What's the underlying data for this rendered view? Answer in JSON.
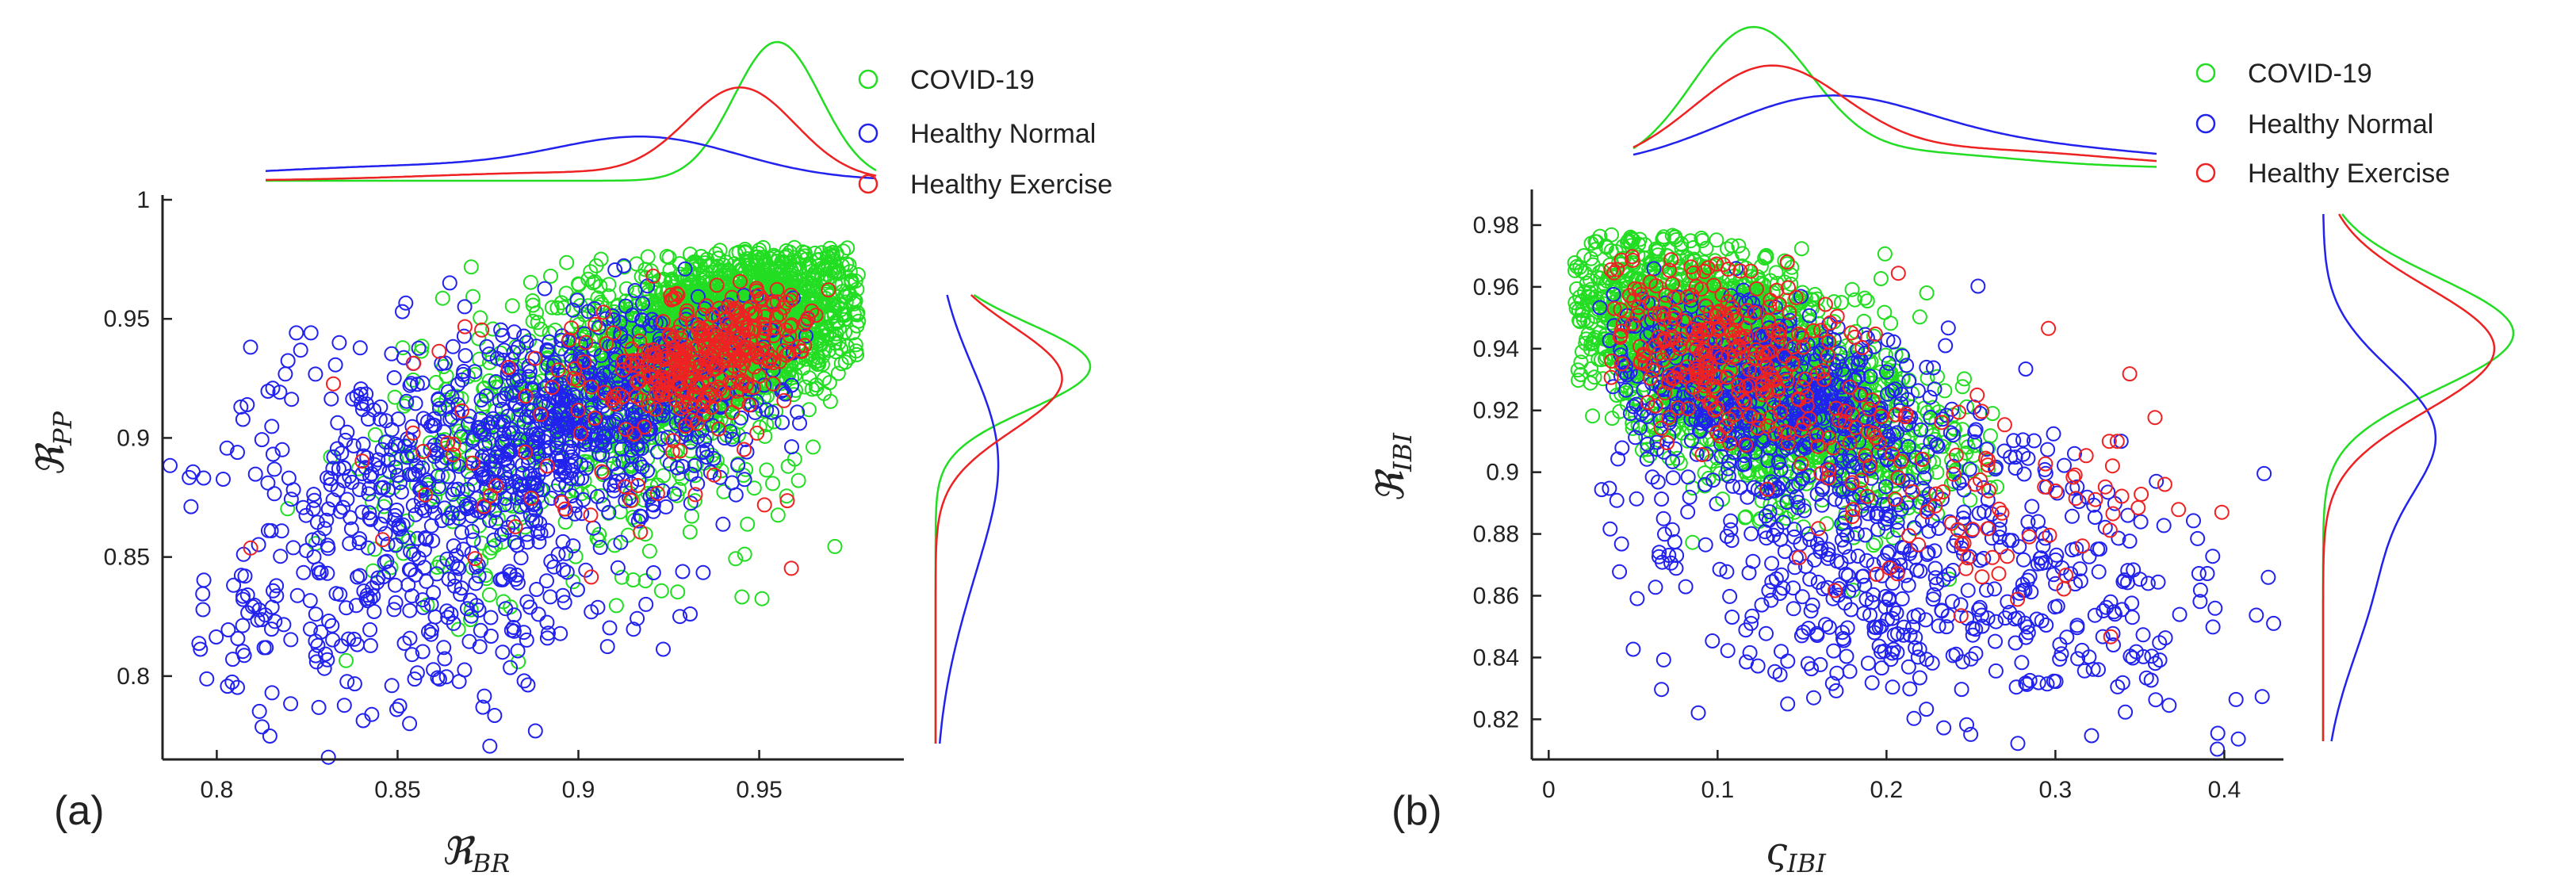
{
  "figure": {
    "legend": [
      {
        "label": "COVID-19",
        "color": "#22dd22"
      },
      {
        "label": "Healthy Normal",
        "color": "#2222ee"
      },
      {
        "label": "Healthy Exercise",
        "color": "#ee2222"
      }
    ]
  },
  "chart_data": [
    {
      "type": "scatter",
      "panel_label": "(a)",
      "xlabel": {
        "symbol": "ℜ",
        "subscript": "BR"
      },
      "ylabel": {
        "symbol": "ℜ",
        "subscript": "PP"
      },
      "xlim": [
        0.785,
        0.99
      ],
      "ylim": [
        0.765,
        1.0
      ],
      "xticks": [
        {
          "v": 0.8,
          "label": "0.8"
        },
        {
          "v": 0.85,
          "label": "0.85"
        },
        {
          "v": 0.9,
          "label": "0.9"
        },
        {
          "v": 0.95,
          "label": "0.95"
        }
      ],
      "yticks": [
        {
          "v": 0.8,
          "label": "0.8"
        },
        {
          "v": 0.85,
          "label": "0.85"
        },
        {
          "v": 0.9,
          "label": "0.9"
        },
        {
          "v": 0.95,
          "label": "0.95"
        },
        {
          "v": 1.0,
          "label": "1"
        }
      ],
      "series": [
        {
          "name": "COVID-19",
          "color": "#22dd22",
          "n": 2600,
          "clusters": [
            {
              "w": 0.75,
              "mx": 0.942,
              "sx": 0.018,
              "my": 0.945,
              "sy": 0.018,
              "rho": 0.45
            },
            {
              "w": 0.25,
              "mx": 0.905,
              "sx": 0.03,
              "my": 0.915,
              "sy": 0.035,
              "rho": 0.35
            }
          ],
          "xclip": [
            0.8,
            0.978
          ],
          "yclip": [
            0.775,
            0.98
          ]
        },
        {
          "name": "Healthy Normal",
          "color": "#2222ee",
          "n": 1150,
          "clusters": [
            {
              "w": 0.5,
              "mx": 0.905,
              "sx": 0.025,
              "my": 0.91,
              "sy": 0.022,
              "rho": 0.4
            },
            {
              "w": 0.5,
              "mx": 0.855,
              "sx": 0.037,
              "my": 0.865,
              "sy": 0.04,
              "rho": 0.2
            }
          ],
          "xclip": [
            0.786,
            0.965
          ],
          "yclip": [
            0.765,
            0.975
          ]
        },
        {
          "name": "Healthy Exercise",
          "color": "#ee2222",
          "n": 380,
          "clusters": [
            {
              "w": 0.85,
              "mx": 0.935,
              "sx": 0.014,
              "my": 0.935,
              "sy": 0.014,
              "rho": 0.5
            },
            {
              "w": 0.15,
              "mx": 0.905,
              "sx": 0.035,
              "my": 0.895,
              "sy": 0.035,
              "rho": 0.2
            }
          ],
          "xclip": [
            0.8,
            0.97
          ],
          "yclip": [
            0.79,
            0.97
          ]
        }
      ],
      "marginals": {
        "x": [
          {
            "name": "COVID-19",
            "color": "#22dd22",
            "mixture": [
              {
                "w": 1.0,
                "m": 0.955,
                "s": 0.012
              }
            ]
          },
          {
            "name": "Healthy Normal",
            "color": "#2222ee",
            "mixture": [
              {
                "w": 0.55,
                "m": 0.92,
                "s": 0.025
              },
              {
                "w": 0.45,
                "m": 0.86,
                "s": 0.05
              }
            ]
          },
          {
            "name": "Healthy Exercise",
            "color": "#ee2222",
            "mixture": [
              {
                "w": 0.8,
                "m": 0.945,
                "s": 0.015
              },
              {
                "w": 0.2,
                "m": 0.9,
                "s": 0.04
              }
            ]
          }
        ],
        "y": [
          {
            "name": "COVID-19",
            "color": "#22dd22",
            "mixture": [
              {
                "w": 1.0,
                "m": 0.93,
                "s": 0.018
              }
            ]
          },
          {
            "name": "Healthy Normal",
            "color": "#2222ee",
            "mixture": [
              {
                "w": 0.6,
                "m": 0.9,
                "s": 0.035
              },
              {
                "w": 0.4,
                "m": 0.85,
                "s": 0.04
              }
            ]
          },
          {
            "name": "Healthy Exercise",
            "color": "#ee2222",
            "mixture": [
              {
                "w": 1.0,
                "m": 0.925,
                "s": 0.022
              }
            ]
          }
        ]
      }
    },
    {
      "type": "scatter",
      "panel_label": "(b)",
      "xlabel": {
        "symbol": "ς",
        "subscript": "IBI"
      },
      "ylabel": {
        "symbol": "ℜ",
        "subscript": "IBI"
      },
      "xlim": [
        -0.01,
        0.435
      ],
      "ylim": [
        0.807,
        0.99
      ],
      "xticks": [
        {
          "v": 0,
          "label": "0"
        },
        {
          "v": 0.1,
          "label": "0.1"
        },
        {
          "v": 0.2,
          "label": "0.2"
        },
        {
          "v": 0.3,
          "label": "0.3"
        },
        {
          "v": 0.4,
          "label": "0.4"
        }
      ],
      "yticks": [
        {
          "v": 0.82,
          "label": "0.82"
        },
        {
          "v": 0.84,
          "label": "0.84"
        },
        {
          "v": 0.86,
          "label": "0.86"
        },
        {
          "v": 0.88,
          "label": "0.88"
        },
        {
          "v": 0.9,
          "label": "0.9"
        },
        {
          "v": 0.92,
          "label": "0.92"
        },
        {
          "v": 0.94,
          "label": "0.94"
        },
        {
          "v": 0.96,
          "label": "0.96"
        },
        {
          "v": 0.98,
          "label": "0.98"
        }
      ],
      "series": [
        {
          "name": "COVID-19",
          "color": "#22dd22",
          "n": 2600,
          "clusters": [
            {
              "w": 0.8,
              "mx": 0.1,
              "sx": 0.045,
              "my": 0.94,
              "sy": 0.018,
              "rho": -0.55
            },
            {
              "w": 0.2,
              "mx": 0.16,
              "sx": 0.05,
              "my": 0.915,
              "sy": 0.015,
              "rho": -0.3
            }
          ],
          "xclip": [
            0.015,
            0.27
          ],
          "yclip": [
            0.83,
            0.977
          ]
        },
        {
          "name": "Healthy Normal",
          "color": "#2222ee",
          "n": 1100,
          "clusters": [
            {
              "w": 0.5,
              "mx": 0.13,
              "sx": 0.05,
              "my": 0.925,
              "sy": 0.015,
              "rho": -0.4
            },
            {
              "w": 0.5,
              "mx": 0.22,
              "sx": 0.09,
              "my": 0.87,
              "sy": 0.025,
              "rho": -0.2
            }
          ],
          "xclip": [
            0.03,
            0.43
          ],
          "yclip": [
            0.808,
            0.975
          ]
        },
        {
          "name": "Healthy Exercise",
          "color": "#ee2222",
          "n": 380,
          "clusters": [
            {
              "w": 0.75,
              "mx": 0.1,
              "sx": 0.04,
              "my": 0.94,
              "sy": 0.016,
              "rho": -0.4
            },
            {
              "w": 0.25,
              "mx": 0.23,
              "sx": 0.07,
              "my": 0.9,
              "sy": 0.02,
              "rho": -0.2
            }
          ],
          "xclip": [
            0.035,
            0.4
          ],
          "yclip": [
            0.815,
            0.97
          ]
        }
      ],
      "marginals": {
        "x": [
          {
            "name": "COVID-19",
            "color": "#22dd22",
            "mixture": [
              {
                "w": 0.8,
                "m": 0.12,
                "s": 0.035
              },
              {
                "w": 0.2,
                "m": 0.2,
                "s": 0.07
              }
            ]
          },
          {
            "name": "Healthy Normal",
            "color": "#2222ee",
            "mixture": [
              {
                "w": 0.6,
                "m": 0.16,
                "s": 0.06
              },
              {
                "w": 0.4,
                "m": 0.26,
                "s": 0.1
              }
            ]
          },
          {
            "name": "Healthy Exercise",
            "color": "#ee2222",
            "mixture": [
              {
                "w": 0.75,
                "m": 0.13,
                "s": 0.045
              },
              {
                "w": 0.25,
                "m": 0.25,
                "s": 0.08
              }
            ]
          }
        ],
        "y": [
          {
            "name": "COVID-19",
            "color": "#22dd22",
            "mixture": [
              {
                "w": 1.0,
                "m": 0.945,
                "s": 0.018
              }
            ]
          },
          {
            "name": "Healthy Normal",
            "color": "#2222ee",
            "mixture": [
              {
                "w": 0.55,
                "m": 0.915,
                "s": 0.02
              },
              {
                "w": 0.45,
                "m": 0.87,
                "s": 0.03
              }
            ]
          },
          {
            "name": "Healthy Exercise",
            "color": "#ee2222",
            "mixture": [
              {
                "w": 1.0,
                "m": 0.94,
                "s": 0.02
              }
            ]
          }
        ]
      }
    }
  ]
}
